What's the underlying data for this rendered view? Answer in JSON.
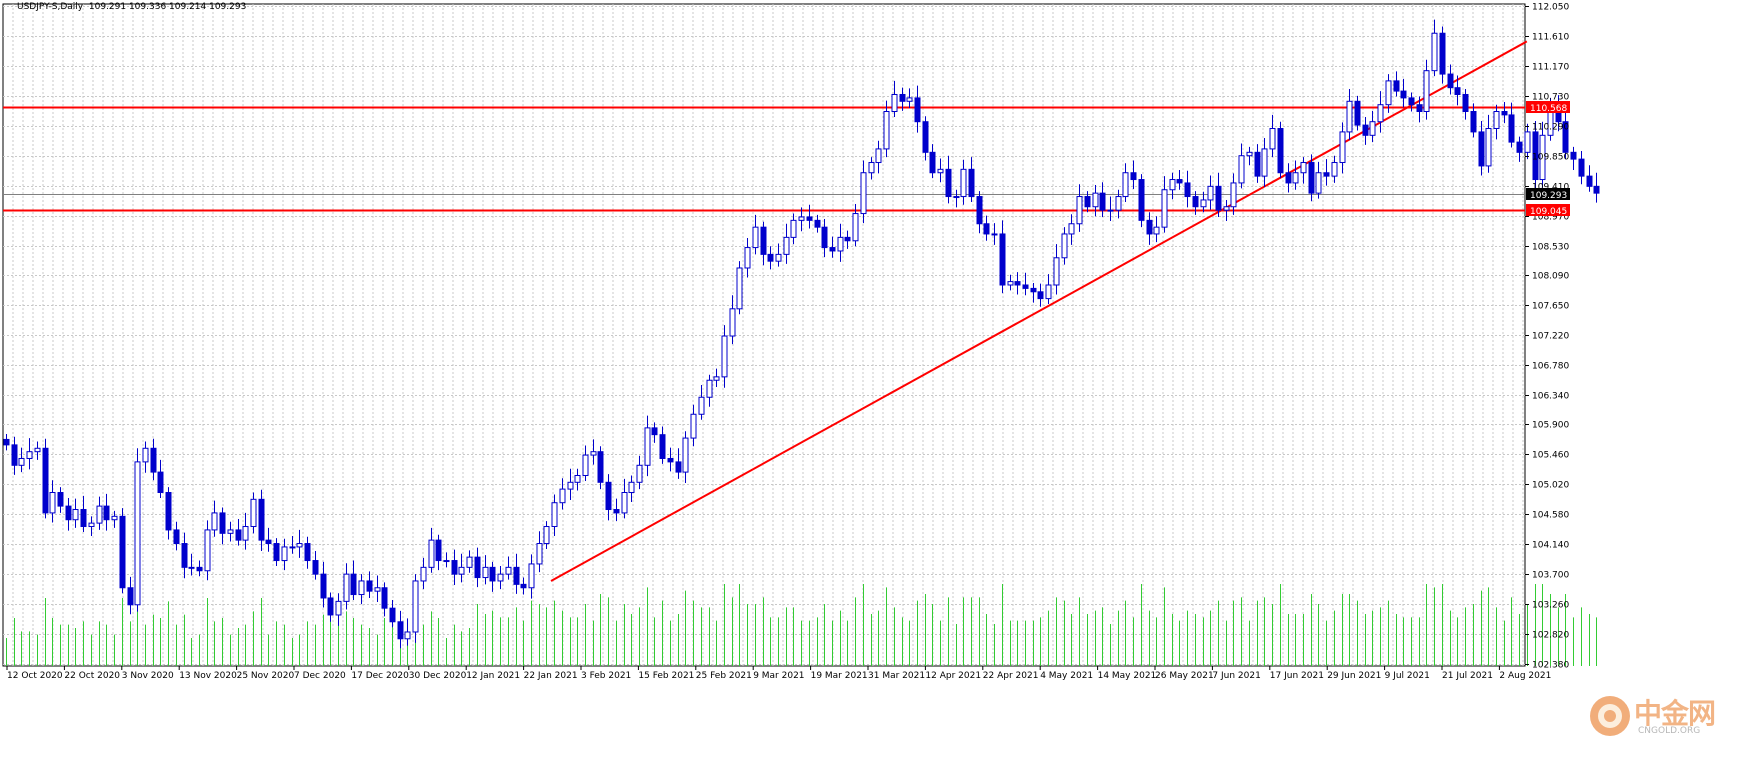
{
  "header": {
    "symbol": "USDJPY-S,Daily",
    "ohlc": "109.291 109.336 109.214 109.293"
  },
  "watermark": {
    "brand": "中金网",
    "site": "CNGOLD.ORG",
    "color": "#e87722"
  },
  "colors": {
    "candle": "#0000cc",
    "volume": "#33cc33",
    "trend": "#ff0000",
    "grid": "#c8c8c8",
    "current_price_line": "#808080"
  },
  "chart_data": {
    "type": "candlestick",
    "ylim": [
      102.35,
      112.08
    ],
    "grid": true,
    "y_ticks": [
      "112.050",
      "111.610",
      "111.170",
      "110.730",
      "110.290",
      "109.850",
      "109.410",
      "108.970",
      "108.530",
      "108.090",
      "107.650",
      "107.220",
      "106.780",
      "106.340",
      "105.900",
      "105.460",
      "105.020",
      "104.580",
      "104.140",
      "103.700",
      "103.260",
      "102.820",
      "102.380"
    ],
    "x_labels": [
      "12 Oct 2020",
      "22 Oct 2020",
      "3 Nov 2020",
      "13 Nov 2020",
      "25 Nov 2020",
      "7 Dec 2020",
      "17 Dec 2020",
      "30 Dec 2020",
      "12 Jan 2021",
      "22 Jan 2021",
      "3 Feb 2021",
      "15 Feb 2021",
      "25 Feb 2021",
      "9 Mar 2021",
      "19 Mar 2021",
      "31 Mar 2021",
      "12 Apr 2021",
      "22 Apr 2021",
      "4 May 2021",
      "14 May 2021",
      "26 May 2021",
      "7 Jun 2021",
      "17 Jun 2021",
      "29 Jun 2021",
      "9 Jul 2021",
      "21 Jul 2021",
      "2 Aug 2021"
    ],
    "price_labels": {
      "resistance": "110.568",
      "support": "109.045",
      "current": "109.293"
    },
    "horizontal_lines": [
      110.568,
      109.045
    ],
    "current_price": 109.293,
    "trendline": [
      [
        0,
        103.6
      ],
      [
        197,
        111.53
      ]
    ],
    "closes": [
      105.6,
      105.3,
      105.4,
      105.5,
      105.55,
      104.6,
      104.9,
      104.7,
      104.5,
      104.65,
      104.4,
      104.45,
      104.7,
      104.5,
      104.55,
      103.5,
      103.25,
      105.35,
      105.55,
      105.2,
      104.9,
      104.35,
      104.15,
      103.8,
      103.8,
      103.75,
      104.35,
      104.6,
      104.3,
      104.35,
      104.2,
      104.4,
      104.8,
      104.2,
      104.15,
      103.9,
      104.1,
      104.1,
      104.15,
      103.9,
      103.7,
      103.35,
      103.1,
      103.3,
      103.7,
      103.4,
      103.6,
      103.45,
      103.5,
      103.2,
      103.0,
      102.75,
      102.85,
      103.6,
      103.8,
      104.2,
      103.9,
      103.9,
      103.7,
      103.8,
      103.95,
      103.65,
      103.8,
      103.6,
      103.7,
      103.8,
      103.55,
      103.5,
      103.85,
      104.15,
      104.4,
      104.75,
      104.95,
      105.05,
      105.15,
      105.45,
      105.5,
      105.05,
      104.65,
      104.6,
      104.9,
      105.05,
      105.3,
      105.85,
      105.75,
      105.4,
      105.35,
      105.2,
      105.7,
      106.05,
      106.3,
      106.55,
      106.6,
      107.2,
      107.6,
      108.2,
      108.5,
      108.8,
      108.4,
      108.3,
      108.4,
      108.65,
      108.9,
      108.95,
      108.9,
      108.8,
      108.5,
      108.45,
      108.65,
      108.6,
      109.0,
      109.6,
      109.75,
      109.95,
      110.5,
      110.75,
      110.65,
      110.7,
      110.35,
      109.9,
      109.6,
      109.65,
      109.25,
      109.25,
      109.65,
      109.25,
      108.85,
      108.7,
      108.7,
      107.95,
      108.0,
      107.95,
      107.9,
      107.85,
      107.75,
      107.95,
      108.35,
      108.7,
      108.85,
      109.25,
      109.1,
      109.3,
      109.05,
      109.05,
      109.25,
      109.6,
      109.5,
      108.9,
      108.7,
      108.8,
      109.35,
      109.5,
      109.45,
      109.25,
      109.1,
      109.2,
      109.4,
      109.05,
      109.1,
      109.45,
      109.85,
      109.9,
      109.55,
      109.95,
      110.25,
      109.6,
      109.45,
      109.6,
      109.75,
      109.3,
      109.6,
      109.55,
      109.75,
      110.2,
      110.65,
      110.3,
      110.15,
      110.35,
      110.6,
      110.95,
      110.8,
      110.7,
      110.6,
      110.5,
      111.1,
      111.65,
      111.05,
      110.85,
      110.75,
      110.5,
      110.2,
      109.7,
      110.25,
      110.5,
      110.45,
      110.05,
      109.9,
      110.2,
      109.5,
      110.15,
      110.6,
      110.35,
      109.9,
      109.8,
      109.55,
      109.4,
      109.3
    ]
  }
}
